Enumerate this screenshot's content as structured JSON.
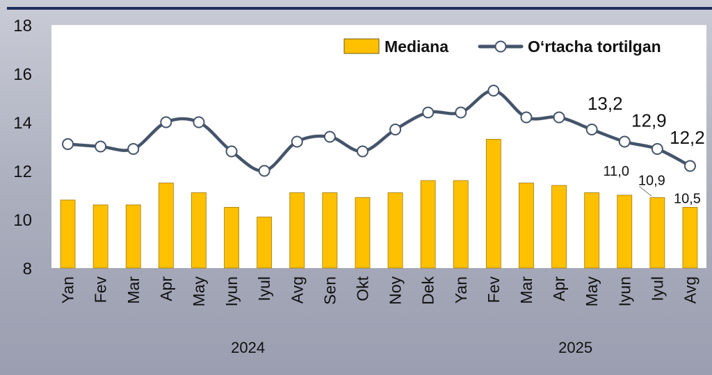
{
  "chart_data": {
    "type": "bar+line",
    "title": "",
    "xlabel": "",
    "ylabel": "",
    "ylim": [
      8,
      18
    ],
    "yticks": [
      "8",
      "10",
      "12",
      "14",
      "16",
      "18"
    ],
    "categories": [
      "Yan",
      "Fev",
      "Mar",
      "Apr",
      "May",
      "Iyun",
      "Iyul",
      "Avg",
      "Sen",
      "Okt",
      "Noy",
      "Dek",
      "Yan",
      "Fev",
      "Mar",
      "Apr",
      "May",
      "Iyun",
      "Iyul",
      "Avg"
    ],
    "years": [
      {
        "label": "2024",
        "from": 0,
        "to": 11
      },
      {
        "label": "2025",
        "from": 12,
        "to": 19
      }
    ],
    "series": [
      {
        "name": "Mediana",
        "type": "bar",
        "color": "#FFC000",
        "values": [
          10.8,
          10.6,
          10.6,
          11.5,
          11.1,
          10.5,
          10.1,
          11.1,
          11.1,
          10.9,
          11.1,
          11.6,
          11.6,
          13.3,
          11.5,
          11.4,
          11.1,
          11.0,
          10.9,
          10.5
        ]
      },
      {
        "name": "O‘rtacha tortilgan",
        "type": "line",
        "color": "#44546A",
        "values": [
          13.1,
          13.0,
          12.9,
          14.0,
          14.0,
          12.8,
          12.0,
          13.2,
          13.4,
          12.8,
          13.7,
          14.4,
          14.4,
          15.3,
          14.2,
          14.2,
          13.7,
          13.2,
          12.9,
          12.2
        ]
      }
    ],
    "data_labels": {
      "bar": [
        {
          "index": 17,
          "text": "11,0"
        },
        {
          "index": 18,
          "text": "10,9"
        },
        {
          "index": 19,
          "text": "10,5"
        }
      ],
      "line": [
        {
          "index": 17,
          "text": "13,2"
        },
        {
          "index": 18,
          "text": "12,9"
        },
        {
          "index": 19,
          "text": "12,2"
        }
      ]
    },
    "legend": {
      "position": "top-right",
      "items": [
        "Mediana",
        "O‘rtacha tortilgan"
      ]
    }
  }
}
